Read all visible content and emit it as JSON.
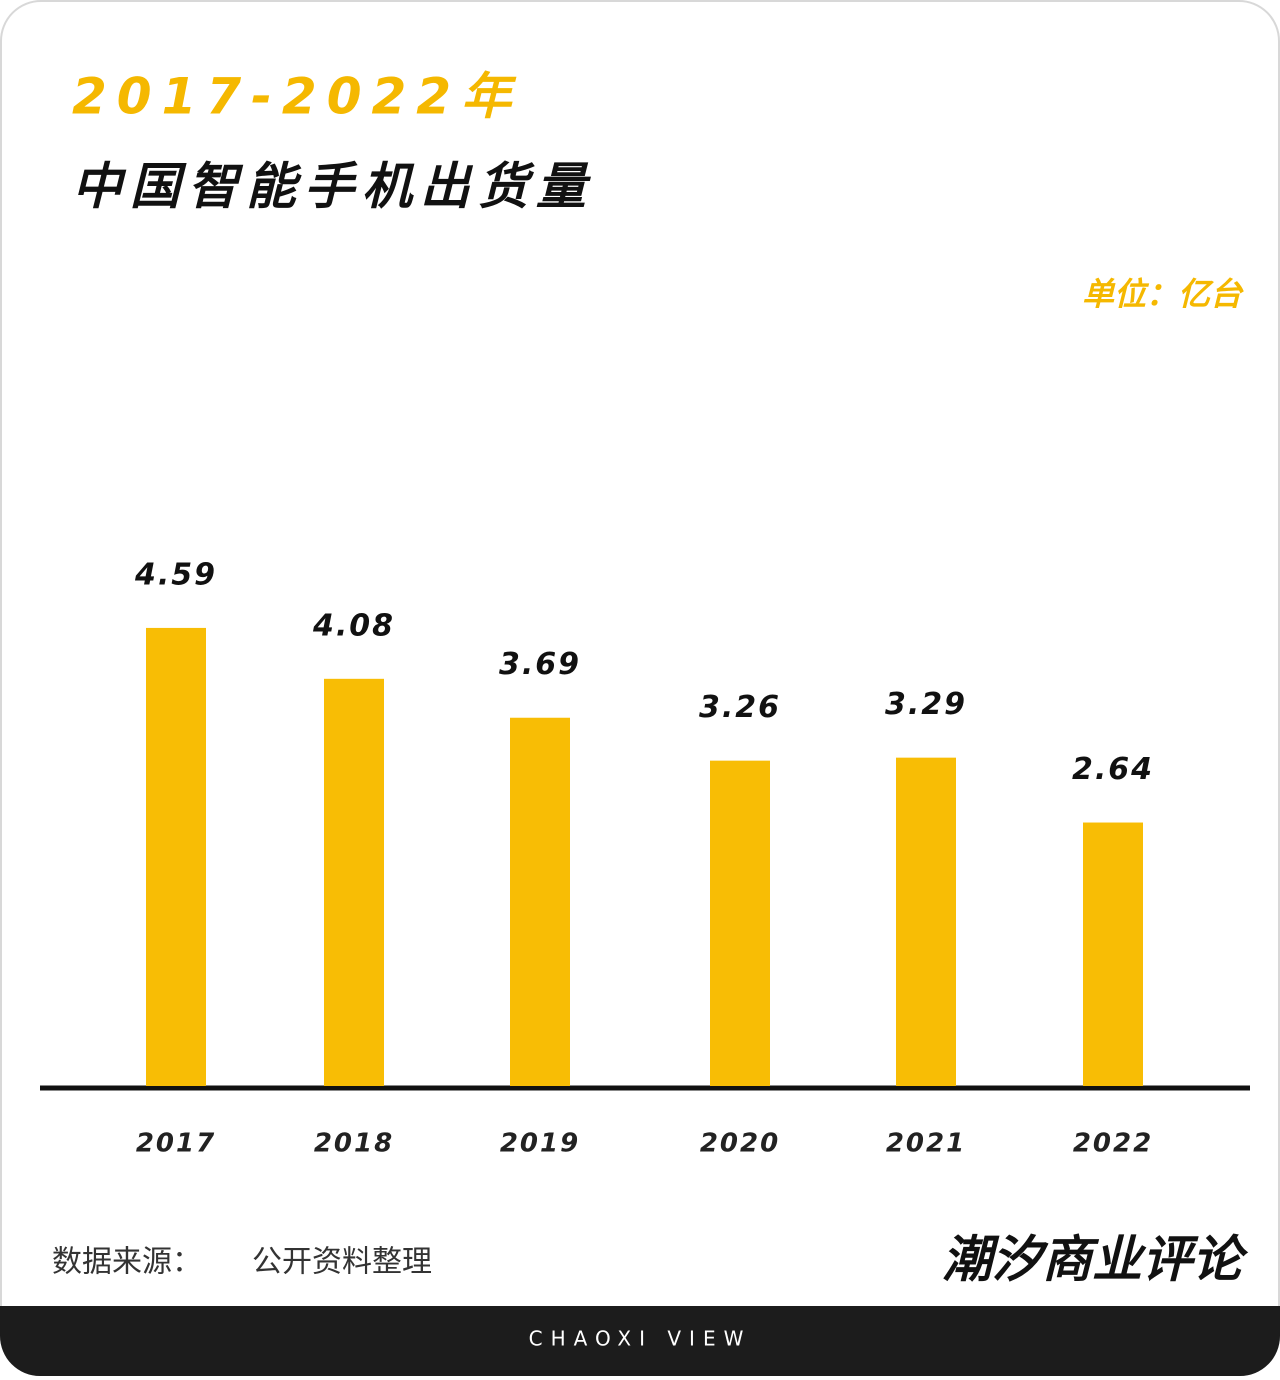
{
  "chart_data": {
    "type": "bar",
    "title": "2017-2022年",
    "subtitle": "中国智能手机出货量",
    "unit": "单位：亿台",
    "categories": [
      "2017",
      "2018",
      "2019",
      "2020",
      "2021",
      "2022"
    ],
    "values": [
      4.59,
      4.08,
      3.69,
      3.26,
      3.29,
      2.64
    ],
    "color": "#f8bd05"
  },
  "source_label": "数据来源：",
  "source": "公开资料整理",
  "brand": "潮汐商业评论",
  "footer": "CHAOXI VIEW"
}
